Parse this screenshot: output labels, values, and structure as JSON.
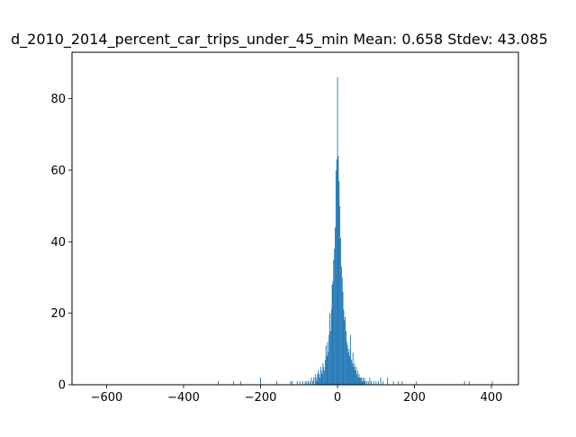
{
  "chart_data": {
    "type": "bar",
    "title": "d_2010_2014_percent_car_trips_under_45_min  Mean: 0.658  Stdev: 43.085",
    "xlabel": "",
    "ylabel": "",
    "xlim": [
      -690,
      470
    ],
    "ylim": [
      0,
      93
    ],
    "xticks": [
      -600,
      -400,
      -200,
      0,
      200,
      400
    ],
    "yticks": [
      0,
      20,
      40,
      60,
      80
    ],
    "bar_color": "#1f77b4",
    "grid": false,
    "bin_width": 2,
    "bins": [
      [
        -310,
        1
      ],
      [
        -270,
        1
      ],
      [
        -252,
        1
      ],
      [
        -200,
        2
      ],
      [
        -158,
        1
      ],
      [
        -122,
        1
      ],
      [
        -118,
        1
      ],
      [
        -105,
        1
      ],
      [
        -98,
        1
      ],
      [
        -90,
        1
      ],
      [
        -84,
        1
      ],
      [
        -80,
        1
      ],
      [
        -76,
        1
      ],
      [
        -72,
        1
      ],
      [
        -68,
        2
      ],
      [
        -64,
        1
      ],
      [
        -62,
        2
      ],
      [
        -58,
        3
      ],
      [
        -56,
        2
      ],
      [
        -54,
        1
      ],
      [
        -52,
        3
      ],
      [
        -50,
        4
      ],
      [
        -48,
        3
      ],
      [
        -46,
        2
      ],
      [
        -44,
        5
      ],
      [
        -42,
        4
      ],
      [
        -40,
        3
      ],
      [
        -38,
        6
      ],
      [
        -36,
        5
      ],
      [
        -34,
        4
      ],
      [
        -32,
        7
      ],
      [
        -30,
        11
      ],
      [
        -28,
        8
      ],
      [
        -26,
        12
      ],
      [
        -24,
        9
      ],
      [
        -22,
        14
      ],
      [
        -20,
        20
      ],
      [
        -18,
        15
      ],
      [
        -16,
        21
      ],
      [
        -14,
        28
      ],
      [
        -12,
        29
      ],
      [
        -10,
        35
      ],
      [
        -8,
        38
      ],
      [
        -6,
        44
      ],
      [
        -4,
        60
      ],
      [
        -2,
        63
      ],
      [
        0,
        86
      ],
      [
        2,
        64
      ],
      [
        4,
        57
      ],
      [
        6,
        50
      ],
      [
        8,
        41
      ],
      [
        10,
        33
      ],
      [
        12,
        30
      ],
      [
        14,
        26
      ],
      [
        16,
        21
      ],
      [
        18,
        18
      ],
      [
        20,
        19
      ],
      [
        22,
        15
      ],
      [
        24,
        12
      ],
      [
        26,
        11
      ],
      [
        28,
        9
      ],
      [
        30,
        10
      ],
      [
        32,
        8
      ],
      [
        34,
        14
      ],
      [
        36,
        7
      ],
      [
        38,
        6
      ],
      [
        40,
        9
      ],
      [
        42,
        5
      ],
      [
        44,
        6
      ],
      [
        46,
        4
      ],
      [
        48,
        5
      ],
      [
        50,
        3
      ],
      [
        52,
        4
      ],
      [
        54,
        2
      ],
      [
        56,
        3
      ],
      [
        58,
        2
      ],
      [
        60,
        2
      ],
      [
        62,
        2
      ],
      [
        64,
        1
      ],
      [
        66,
        2
      ],
      [
        68,
        1
      ],
      [
        70,
        2
      ],
      [
        72,
        1
      ],
      [
        76,
        1
      ],
      [
        80,
        1
      ],
      [
        84,
        2
      ],
      [
        88,
        1
      ],
      [
        94,
        1
      ],
      [
        100,
        1
      ],
      [
        106,
        1
      ],
      [
        112,
        2
      ],
      [
        118,
        1
      ],
      [
        130,
        2
      ],
      [
        145,
        1
      ],
      [
        158,
        1
      ],
      [
        168,
        1
      ],
      [
        205,
        1
      ],
      [
        330,
        1
      ],
      [
        342,
        1
      ],
      [
        402,
        1
      ]
    ]
  }
}
